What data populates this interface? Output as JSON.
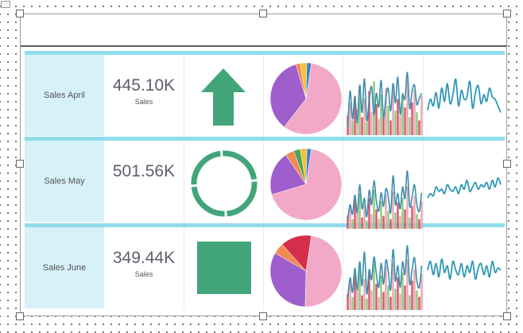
{
  "colors": {
    "band": "#8fdcec",
    "label_bg": "#d6f1f8",
    "kpi_shape": "#42a57a",
    "pie": [
      "#f2a9c7",
      "#9e5fcc",
      "#ef8a52",
      "#4aa553",
      "#f3c134",
      "#3b7fd1",
      "#d42e4a"
    ],
    "bars": [
      "#d9536e",
      "#e7a9b1",
      "#8ec97a",
      "#3c8fae"
    ],
    "line": "#2d97b5"
  },
  "rows": [
    {
      "name": "Sales April",
      "value": "445.10K",
      "value_label": "Sales",
      "indicator_icon": "arrow-up-icon",
      "pie": [
        58,
        35,
        2,
        0,
        3,
        2,
        0
      ],
      "bars": [
        12,
        20,
        9,
        24,
        16,
        30,
        11,
        22,
        8,
        27,
        14,
        33,
        19,
        10,
        25,
        13,
        29,
        18,
        9,
        31,
        15,
        22,
        12,
        26,
        17,
        34,
        11,
        20,
        28,
        14,
        9,
        24
      ],
      "bars_line": [
        10,
        55,
        20,
        48,
        15,
        62,
        28,
        70,
        18,
        44,
        60,
        25,
        52,
        35,
        68,
        22,
        47,
        58,
        30,
        64,
        40,
        72,
        26,
        50,
        45,
        78,
        33,
        55,
        62,
        38,
        46,
        52
      ],
      "line": [
        20,
        45,
        30,
        60,
        25,
        70,
        40,
        80,
        35,
        55,
        90,
        30,
        65,
        45,
        50,
        85,
        25,
        60,
        75,
        35,
        55,
        40,
        70,
        50,
        45,
        30,
        15
      ]
    },
    {
      "name": "Sales May",
      "value": "501.56K",
      "value_label": "",
      "indicator_icon": "ring-icon",
      "pie": [
        68,
        20,
        4,
        3,
        3,
        2,
        0
      ],
      "bars": [
        8,
        14,
        6,
        18,
        10,
        22,
        7,
        15,
        5,
        19,
        9,
        24,
        12,
        6,
        17,
        8,
        21,
        11,
        6,
        23,
        10,
        16,
        8,
        19,
        12,
        26,
        7,
        14,
        20,
        9,
        6,
        17
      ],
      "bars_line": [
        12,
        30,
        18,
        42,
        20,
        55,
        25,
        38,
        15,
        48,
        30,
        60,
        35,
        22,
        45,
        28,
        50,
        40,
        20,
        66,
        30,
        44,
        25,
        52,
        38,
        72,
        28,
        40,
        55,
        30,
        22,
        45
      ],
      "line": [
        30,
        40,
        35,
        55,
        45,
        50,
        40,
        60,
        50,
        45,
        55,
        40,
        60,
        50,
        70,
        45,
        55,
        65,
        50,
        60,
        55,
        65,
        50,
        70,
        55,
        75,
        60
      ]
    },
    {
      "name": "Sales June",
      "value": "349.44K",
      "value_label": "Sales",
      "indicator_icon": "square-icon",
      "pie": [
        48,
        33,
        5,
        0,
        0,
        0,
        14
      ],
      "bars": [
        10,
        18,
        8,
        22,
        14,
        26,
        9,
        19,
        7,
        24,
        12,
        30,
        16,
        8,
        21,
        11,
        27,
        15,
        8,
        29,
        13,
        20,
        10,
        23,
        15,
        31,
        9,
        18,
        25,
        12,
        8,
        22
      ],
      "bars_line": [
        15,
        40,
        22,
        52,
        25,
        60,
        30,
        72,
        20,
        50,
        38,
        66,
        45,
        28,
        58,
        32,
        62,
        48,
        25,
        75,
        36,
        55,
        28,
        60,
        44,
        80,
        32,
        50,
        65,
        36,
        28,
        55
      ],
      "line": [
        50,
        70,
        40,
        65,
        35,
        75,
        45,
        60,
        30,
        70,
        50,
        40,
        65,
        35,
        60,
        45,
        70,
        30,
        55,
        65,
        40,
        60,
        35,
        70,
        45,
        55,
        50
      ]
    }
  ]
}
